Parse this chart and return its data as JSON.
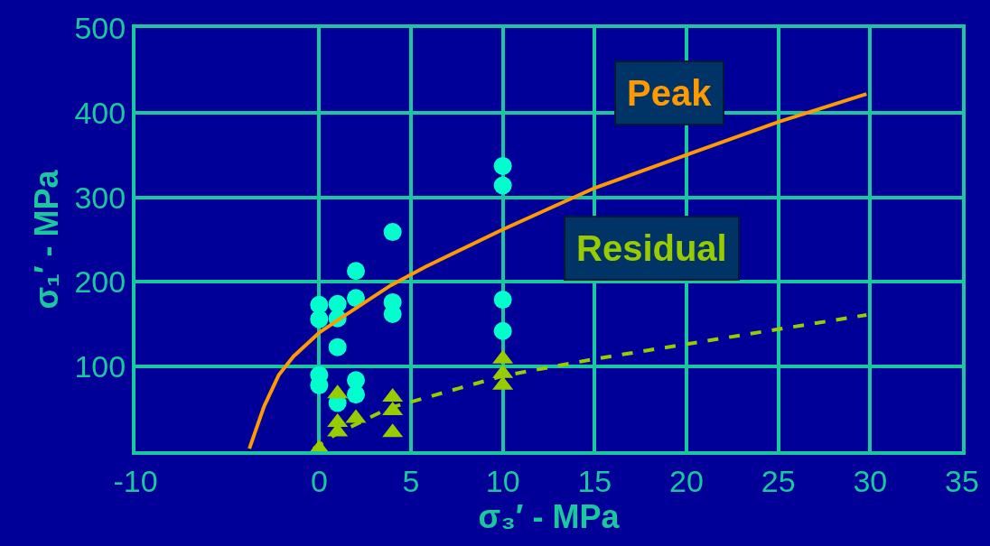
{
  "chart_data": {
    "type": "scatter",
    "xlabel": "σ₃′ - MPa",
    "ylabel": "σ₁′ - MPa",
    "xlim": [
      -10,
      35
    ],
    "xticks": [
      -10,
      0,
      5,
      10,
      15,
      20,
      25,
      30,
      35
    ],
    "ylim": [
      0,
      500
    ],
    "yticks": [
      {
        "value": 0,
        "label": null
      },
      100,
      200,
      300,
      400,
      500
    ],
    "grid": true,
    "series": [
      {
        "marker": "circle",
        "color": "#00ffcc",
        "x": [
          0,
          0,
          0,
          0,
          1,
          1,
          1,
          1,
          2,
          2,
          2,
          2,
          4,
          4,
          4,
          10,
          10,
          10,
          10
        ],
        "values": [
          173,
          156,
          90,
          78,
          174,
          157,
          123,
          57,
          213,
          181,
          84,
          67,
          259,
          176,
          162,
          337,
          314,
          179,
          142
        ]
      },
      {
        "type": "line",
        "name": "Peak",
        "color": "#ff9900",
        "line_style": "solid",
        "x": [
          -3.8,
          -3.0,
          -2.2,
          -1.4,
          0,
          1.3,
          3.9,
          5.8,
          10,
          15,
          20,
          25,
          29.8
        ],
        "values": [
          3,
          53,
          90,
          112,
          140,
          159,
          196,
          218,
          262,
          311,
          350,
          389,
          422
        ]
      },
      {
        "marker": "triangle",
        "color": "#99cc00",
        "x": [
          0,
          1,
          1,
          1,
          2,
          4,
          4,
          4,
          10,
          10,
          10
        ],
        "values": [
          3,
          68,
          34,
          23,
          39,
          64,
          48,
          22,
          109,
          92,
          78
        ]
      },
      {
        "type": "line",
        "name": "Residual",
        "color": "#99cc00",
        "line_style": "dashed",
        "x": [
          -0.3,
          0.9,
          3.8,
          10,
          15,
          29.8
        ],
        "values": [
          3,
          20,
          51,
          89,
          109,
          161
        ]
      }
    ]
  }
}
